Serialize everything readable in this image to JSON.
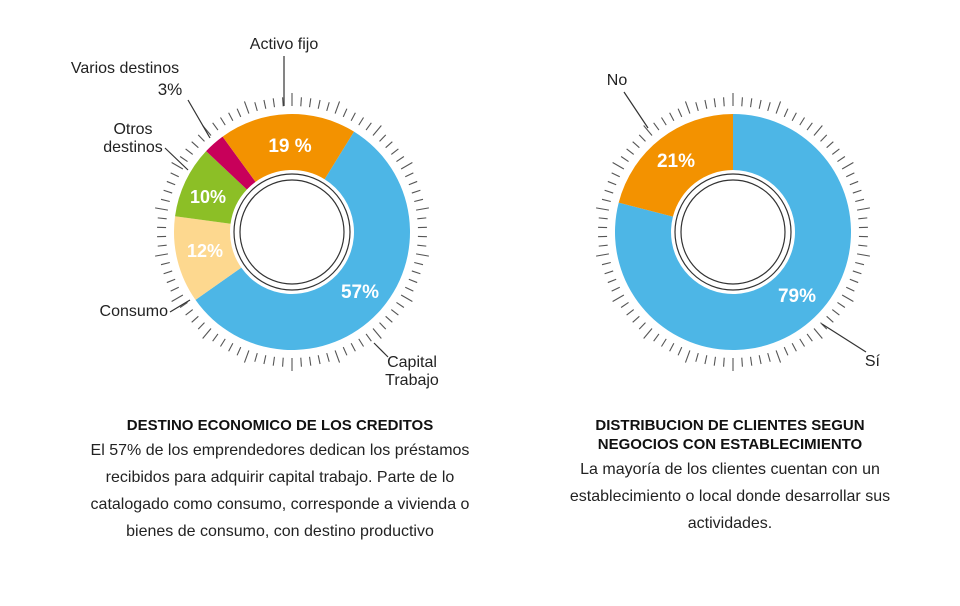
{
  "chart_data": [
    {
      "type": "pie",
      "title": "DESTINO ECONOMICO DE LOS CREDITOS",
      "description": "El 57% de los emprendedores dedican los préstamos recibidos para adquirir capital trabajo. Parte de lo catalogado como consumo, corresponde a vivienda o bienes de consumo, con destino productivo",
      "slices": [
        {
          "label": "Capital Trabajo",
          "value": 57,
          "value_label": "57%",
          "color": "#4db6e6"
        },
        {
          "label": "Consumo",
          "value": 12,
          "value_label": "12%",
          "color": "#fdd88f"
        },
        {
          "label": "Otros destinos",
          "value": 10,
          "value_label": "10%",
          "color": "#8cbf26"
        },
        {
          "label": "Varios destinos",
          "value": 3,
          "value_label": "3%",
          "color": "#c8005a"
        },
        {
          "label": "Activo fijo",
          "value": 19,
          "value_label": "19 %",
          "color": "#f39200"
        }
      ]
    },
    {
      "type": "pie",
      "title": "DISTRIBUCION DE CLIENTES SEGUN NEGOCIOS CON ESTABLECIMIENTO",
      "description": "La mayoría de los clientes cuentan con un establecimiento o local donde desarrollar sus actividades.",
      "slices": [
        {
          "label": "Sí",
          "value": 79,
          "value_label": "79%",
          "color": "#4db6e6"
        },
        {
          "label": "No",
          "value": 21,
          "value_label": "21%",
          "color": "#f39200"
        }
      ]
    }
  ]
}
